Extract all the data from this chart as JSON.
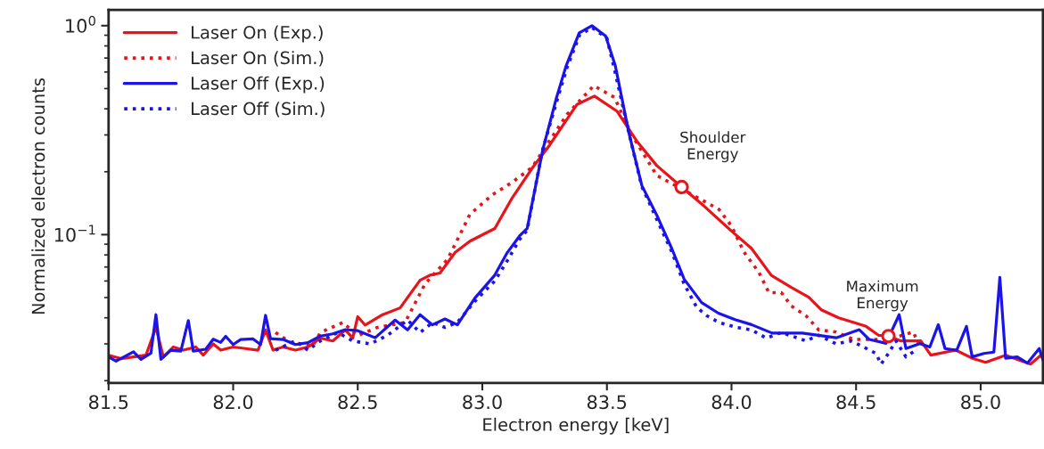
{
  "chart_data": {
    "type": "line",
    "xlabel": "Electron energy [keV]",
    "ylabel": "Normalized electron counts",
    "log": "y",
    "grid": false,
    "legend": "top left",
    "xlim": [
      81.5,
      85.25
    ],
    "ylim": [
      0.0195,
      1.19
    ],
    "xticks": [
      {
        "value": 81.5,
        "label": "81.5"
      },
      {
        "value": 82,
        "label": "82.0"
      },
      {
        "value": 82.5,
        "label": "82.5"
      },
      {
        "value": 83,
        "label": "83.0"
      },
      {
        "value": 83.5,
        "label": "83.5"
      },
      {
        "value": 84,
        "label": "84.0"
      },
      {
        "value": 84.5,
        "label": "84.5"
      },
      {
        "value": 85,
        "label": "85.0"
      }
    ],
    "yticks": [
      {
        "value": 1,
        "label": "10$^{0}$"
      },
      {
        "value": 0.1,
        "label": "10$^{−1}$"
      },
      {
        "value": 0.02,
        "label": null
      },
      {
        "value": 0.03,
        "label": null
      },
      {
        "value": 0.04,
        "label": null
      },
      {
        "value": 0.05,
        "label": null
      },
      {
        "value": 0.06,
        "label": null
      },
      {
        "value": 0.07,
        "label": null
      },
      {
        "value": 0.08,
        "label": null
      },
      {
        "value": 0.09,
        "label": null
      },
      {
        "value": 0.2,
        "label": null
      },
      {
        "value": 0.3,
        "label": null
      },
      {
        "value": 0.4,
        "label": null
      },
      {
        "value": 0.5,
        "label": null
      },
      {
        "value": 0.6,
        "label": null
      },
      {
        "value": 0.7,
        "label": null
      },
      {
        "value": 0.8,
        "label": null
      },
      {
        "value": 0.9,
        "label": null
      }
    ],
    "series": [
      {
        "name": "Laser On (Exp.)",
        "color": "#e8141c",
        "line_style": "solid",
        "x": [
          81.5,
          81.55,
          81.6,
          81.65,
          81.69,
          81.72,
          81.76,
          81.8,
          81.85,
          81.88,
          81.92,
          81.95,
          82.0,
          82.05,
          82.1,
          82.13,
          82.16,
          82.2,
          82.25,
          82.3,
          82.35,
          82.4,
          82.45,
          82.48,
          82.5,
          82.53,
          82.6,
          82.67,
          82.75,
          82.79,
          82.83,
          82.89,
          82.95,
          83.05,
          83.12,
          83.2,
          83.27,
          83.38,
          83.45,
          83.54,
          83.62,
          83.7,
          83.8,
          83.89,
          84.0,
          84.08,
          84.16,
          84.24,
          84.31,
          84.36,
          84.43,
          84.54,
          84.59,
          84.63,
          84.68,
          84.76,
          84.8,
          84.9,
          84.97,
          85.02,
          85.1,
          85.2,
          85.25
        ],
        "values": [
          0.0265,
          0.0255,
          0.026,
          0.0265,
          0.036,
          0.026,
          0.029,
          0.028,
          0.029,
          0.0265,
          0.03,
          0.028,
          0.029,
          0.0285,
          0.028,
          0.035,
          0.028,
          0.029,
          0.028,
          0.029,
          0.032,
          0.031,
          0.035,
          0.032,
          0.0405,
          0.0369,
          0.0414,
          0.0446,
          0.0605,
          0.064,
          0.0655,
          0.082,
          0.093,
          0.107,
          0.15,
          0.208,
          0.268,
          0.42,
          0.46,
          0.39,
          0.28,
          0.214,
          0.169,
          0.137,
          0.104,
          0.086,
          0.0638,
          0.0559,
          0.0502,
          0.0437,
          0.04,
          0.0364,
          0.033,
          0.0327,
          0.031,
          0.031,
          0.0265,
          0.028,
          0.0255,
          0.0245,
          0.0265,
          0.024,
          0.027
        ]
      },
      {
        "name": "Laser On (Sim.)",
        "color": "#e8141c",
        "line_style": "dotted",
        "x": [
          82.17,
          82.23,
          82.32,
          82.35,
          82.44,
          82.5,
          82.58,
          82.69,
          82.77,
          82.86,
          82.91,
          82.95,
          83.04,
          83.12,
          83.2,
          83.34,
          83.447,
          83.53,
          83.6,
          83.7,
          83.84,
          83.95,
          84.0,
          84.05,
          84.11,
          84.15,
          84.2,
          84.24,
          84.3,
          84.35,
          84.42,
          84.49,
          84.63,
          84.73,
          84.75
        ],
        "values": [
          0.034,
          0.0305,
          0.0294,
          0.034,
          0.038,
          0.0329,
          0.036,
          0.038,
          0.0581,
          0.076,
          0.1,
          0.125,
          0.155,
          0.178,
          0.21,
          0.376,
          0.516,
          0.454,
          0.3,
          0.192,
          0.156,
          0.132,
          0.11,
          0.0825,
          0.066,
          0.0528,
          0.0528,
          0.0456,
          0.0408,
          0.035,
          0.0342,
          0.0315,
          0.0315,
          0.0342,
          0.03
        ]
      },
      {
        "name": "Laser Off (Exp.)",
        "color": "#1a14e8",
        "line_style": "solid",
        "x": [
          81.5,
          81.53,
          81.6,
          81.63,
          81.67,
          81.69,
          81.71,
          81.75,
          81.79,
          81.82,
          81.84,
          81.89,
          81.92,
          81.95,
          81.97,
          82.0,
          82.03,
          82.08,
          82.11,
          82.13,
          82.15,
          82.2,
          82.25,
          82.3,
          82.35,
          82.4,
          82.45,
          82.5,
          82.57,
          82.65,
          82.7,
          82.75,
          82.8,
          82.85,
          82.9,
          82.97,
          83.05,
          83.1,
          83.15,
          83.18,
          83.243,
          83.296,
          83.336,
          83.389,
          83.44,
          83.495,
          83.534,
          83.588,
          83.64,
          83.7,
          83.76,
          83.81,
          83.88,
          83.947,
          84.014,
          84.08,
          84.163,
          84.284,
          84.42,
          84.513,
          84.553,
          84.62,
          84.673,
          84.7,
          84.756,
          84.796,
          84.83,
          84.857,
          84.904,
          84.943,
          84.966,
          85.013,
          85.053,
          85.077,
          85.1,
          85.147,
          85.188,
          85.235,
          85.25
        ],
        "values": [
          0.026,
          0.0248,
          0.0275,
          0.0253,
          0.0271,
          0.0414,
          0.0253,
          0.028,
          0.0277,
          0.0388,
          0.0277,
          0.0283,
          0.0316,
          0.0305,
          0.0326,
          0.0298,
          0.0315,
          0.0317,
          0.0298,
          0.0411,
          0.0318,
          0.0315,
          0.0298,
          0.0304,
          0.0327,
          0.0335,
          0.0351,
          0.0347,
          0.0321,
          0.039,
          0.035,
          0.0414,
          0.037,
          0.0395,
          0.037,
          0.0497,
          0.064,
          0.082,
          0.0987,
          0.107,
          0.256,
          0.445,
          0.641,
          0.924,
          1.0,
          0.891,
          0.641,
          0.308,
          0.172,
          0.124,
          0.086,
          0.0612,
          0.0473,
          0.0421,
          0.0392,
          0.0371,
          0.0338,
          0.0338,
          0.0321,
          0.0351,
          0.0315,
          0.0302,
          0.0414,
          0.0285,
          0.0301,
          0.029,
          0.0371,
          0.0285,
          0.028,
          0.0364,
          0.026,
          0.027,
          0.0274,
          0.0624,
          0.0256,
          0.026,
          0.0243,
          0.0285,
          0.0251
        ]
      },
      {
        "name": "Laser Off (Sim.)",
        "color": "#1a14e8",
        "line_style": "dotted",
        "x": [
          82.17,
          82.25,
          82.3,
          82.35,
          82.42,
          82.48,
          82.55,
          82.62,
          82.7,
          82.75,
          82.8,
          82.85,
          82.9,
          82.97,
          83.05,
          83.1,
          83.15,
          83.18,
          83.24,
          83.3,
          83.34,
          83.39,
          83.44,
          83.5,
          83.53,
          83.59,
          83.64,
          83.72,
          83.76,
          83.81,
          83.86,
          83.9,
          83.95,
          84.02,
          84.08,
          84.14,
          84.2,
          84.3,
          84.35,
          84.42,
          84.48,
          84.53,
          84.58,
          84.6,
          84.63,
          84.66,
          84.7,
          84.74
        ],
        "values": [
          0.028,
          0.031,
          0.028,
          0.031,
          0.034,
          0.031,
          0.03,
          0.033,
          0.039,
          0.034,
          0.038,
          0.036,
          0.038,
          0.048,
          0.06,
          0.075,
          0.095,
          0.105,
          0.25,
          0.44,
          0.63,
          0.9,
          0.98,
          0.87,
          0.62,
          0.3,
          0.17,
          0.105,
          0.083,
          0.058,
          0.045,
          0.041,
          0.038,
          0.036,
          0.035,
          0.032,
          0.034,
          0.031,
          0.033,
          0.03,
          0.031,
          0.029,
          0.027,
          0.024,
          0.027,
          0.031,
          0.026,
          0.028
        ]
      },
      {
        "type": "scatter",
        "color": "#e8141c",
        "marker": "circle",
        "x": [
          83.8,
          84.63
        ],
        "values": [
          0.169,
          0.0327
        ]
      }
    ],
    "annotations": [
      {
        "text": "Shoulder\nEnergy",
        "x": 83.8,
        "y": 0.169
      },
      {
        "text": "Maximum\nEnergy",
        "x": 84.63,
        "y": 0.0327
      }
    ]
  }
}
